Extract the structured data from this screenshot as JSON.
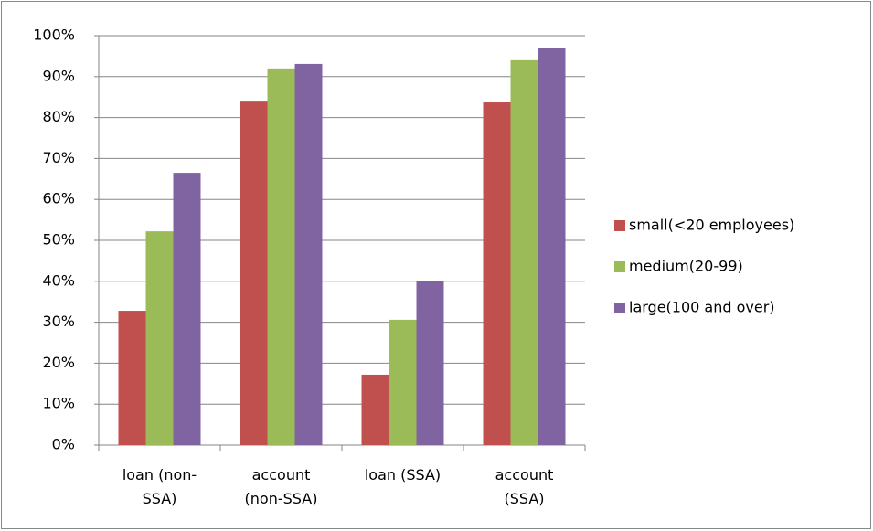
{
  "chart_data": {
    "type": "bar",
    "categories": [
      "loan (non-SSA)",
      "account (non-SSA)",
      "loan (SSA)",
      "account (SSA)"
    ],
    "series": [
      {
        "name": "small(<20 employees)",
        "color": "#c0504d",
        "values": [
          32.8,
          83.9,
          17.2,
          83.7
        ]
      },
      {
        "name": "medium(20-99)",
        "color": "#9bbb59",
        "values": [
          52.2,
          92.0,
          30.6,
          94.0
        ]
      },
      {
        "name": "large(100 and over)",
        "color": "#8064a2",
        "values": [
          66.5,
          93.1,
          40.0,
          96.9
        ]
      }
    ],
    "ylim": [
      0,
      100
    ],
    "yticks": [
      {
        "value": 0,
        "label": "0%"
      },
      {
        "value": 10,
        "label": "10%"
      },
      {
        "value": 20,
        "label": "20%"
      },
      {
        "value": 30,
        "label": "30%"
      },
      {
        "value": 40,
        "label": "40%"
      },
      {
        "value": 50,
        "label": "50%"
      },
      {
        "value": 60,
        "label": "60%"
      },
      {
        "value": 70,
        "label": "70%"
      },
      {
        "value": 80,
        "label": "80%"
      },
      {
        "value": 90,
        "label": "90%"
      },
      {
        "value": 100,
        "label": "100%"
      }
    ],
    "grid": true,
    "legend": "right"
  }
}
